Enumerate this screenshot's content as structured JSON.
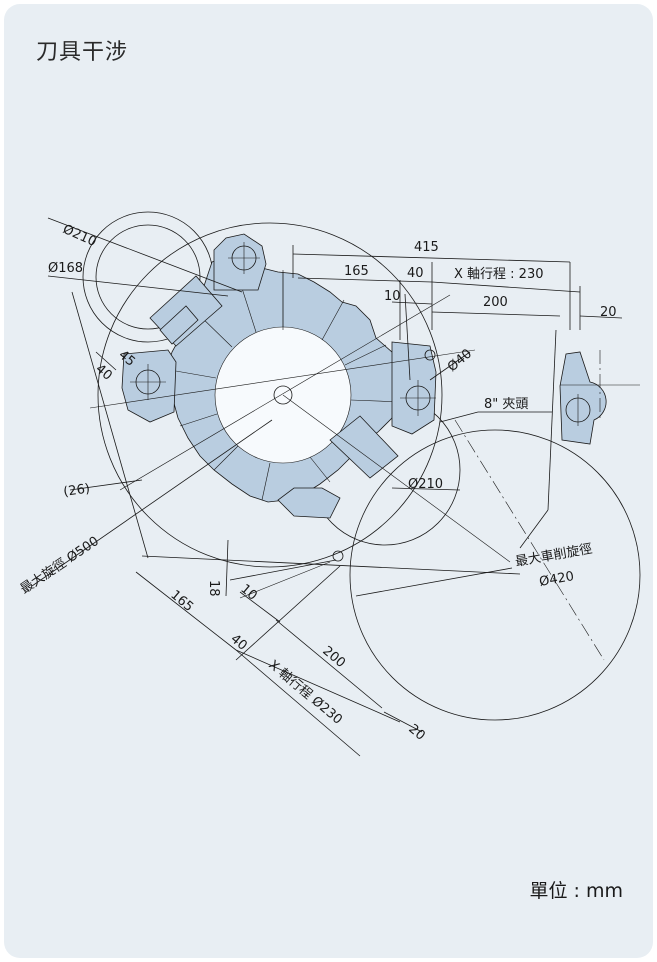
{
  "title": "刀具干涉",
  "unit_label": "單位 : mm",
  "colors": {
    "background": "#e8eef3",
    "turret_light": "#ffffff",
    "turret_dark": "#9fb9d6"
  },
  "labels": {
    "d_415": "415",
    "d_165_top": "165",
    "d_40_top": "40",
    "x_travel_top": "X 軸行程 : 230",
    "d_10_top": "10",
    "d_200_top": "200",
    "d_20_top": "20",
    "dia_210_a": "Ø210",
    "dia_168": "Ø168",
    "d_40_left": "40",
    "d_45_left": "45",
    "dia_40": "Ø40",
    "chuck": "8\" 夾頭",
    "d_26": "(26)",
    "dia_210_b": "Ø210",
    "max_swing": "最大旋徑 Ø500",
    "max_turn_label": "最大車削旋徑",
    "max_turn_dia": "Ø420",
    "d_18": "18",
    "d_10_bot": "10",
    "d_165_bot": "165",
    "d_40_bot": "40",
    "d_200_bot": "200",
    "x_travel_bot": "X 軸行程 Ø230",
    "d_20_bot": "20"
  }
}
